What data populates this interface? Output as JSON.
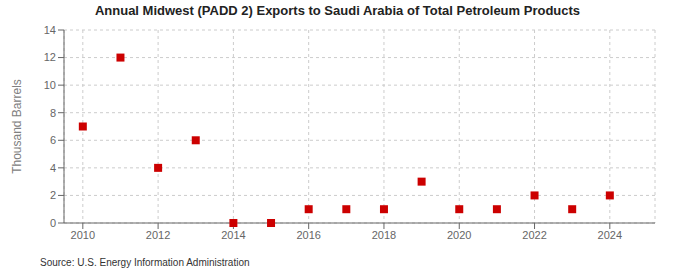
{
  "chart_data": {
    "type": "scatter",
    "title": "Annual Midwest (PADD 2) Exports to Saudi Arabia of Total Petroleum Products",
    "ylabel": "Thousand Barrels",
    "annotations": [
      "Source: U.S. Energy Information Administration"
    ],
    "x": [
      2010,
      2011,
      2012,
      2013,
      2014,
      2015,
      2016,
      2017,
      2018,
      2019,
      2020,
      2021,
      2022,
      2023,
      2024
    ],
    "values": [
      7,
      12,
      4,
      6,
      0,
      0,
      1,
      1,
      1,
      3,
      1,
      1,
      2,
      1,
      2
    ],
    "color": "#cc0000",
    "marker": "square",
    "xlim": [
      2009.5,
      2025.2
    ],
    "xticks": [
      2010,
      2012,
      2014,
      2016,
      2018,
      2020,
      2022,
      2024
    ],
    "ylim": [
      0,
      14
    ],
    "yticks": [
      0,
      2,
      4,
      6,
      8,
      10,
      12,
      14
    ],
    "grid": true
  }
}
